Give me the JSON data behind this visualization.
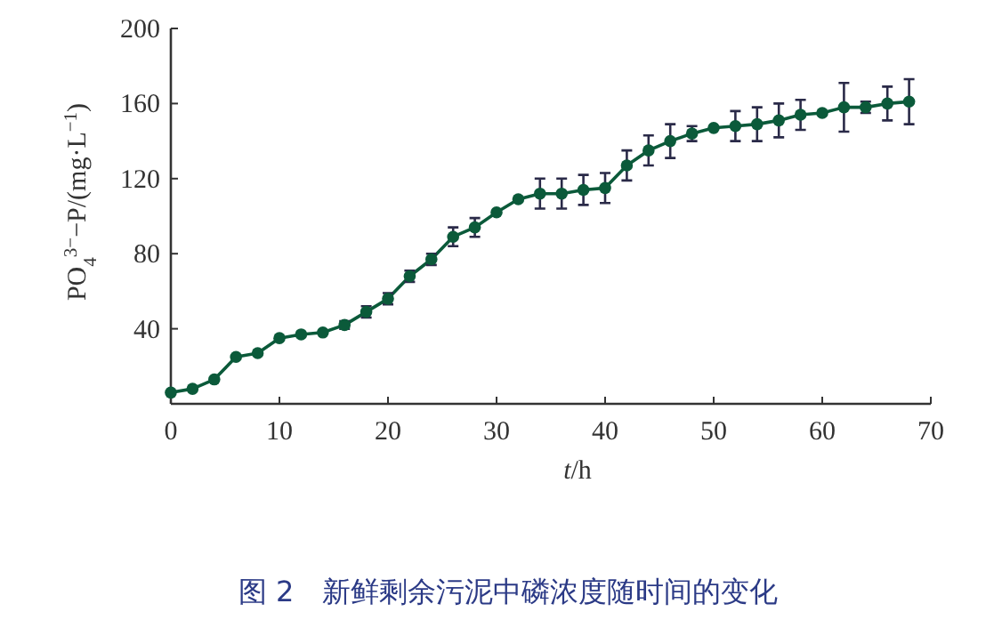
{
  "chart_data": {
    "type": "line",
    "xlabel": "*t*/h",
    "ylabel": "PO$_{4}$$^{3−}$−P/(mg·L$^{−1}$)",
    "annotations": [
      "图 2　新鲜剩余污泥中磷浓度随时间的变化"
    ],
    "x": [
      0,
      2,
      4,
      6,
      8,
      10,
      12,
      14,
      16,
      18,
      20,
      22,
      24,
      26,
      28,
      30,
      32,
      34,
      36,
      38,
      40,
      42,
      44,
      46,
      48,
      50,
      52,
      54,
      56,
      58,
      60,
      62,
      64,
      66,
      68
    ],
    "series": [
      {
        "color": "#0b5a3a",
        "values": [
          6,
          8,
          13,
          25,
          27,
          35,
          37,
          38,
          42,
          49,
          56,
          68,
          77,
          89,
          94,
          102,
          109,
          112,
          112,
          114,
          115,
          127,
          135,
          140,
          144,
          147,
          148,
          149,
          151,
          154,
          155,
          158,
          158,
          160,
          161
        ],
        "errors": [
          null,
          null,
          null,
          null,
          null,
          null,
          null,
          null,
          2,
          3,
          3,
          3,
          3,
          5,
          5,
          null,
          null,
          8,
          8,
          8,
          8,
          8,
          8,
          9,
          4,
          null,
          8,
          9,
          9,
          8,
          null,
          13,
          3,
          9,
          12
        ]
      }
    ],
    "xlim": [
      0,
      70
    ],
    "ylim": [
      0,
      200
    ],
    "xticks": [
      0,
      10,
      20,
      30,
      40,
      50,
      60,
      70
    ],
    "yticks": [
      40,
      80,
      120,
      160,
      200
    ],
    "marker": "circle",
    "line_style": "solid",
    "grid": false
  }
}
